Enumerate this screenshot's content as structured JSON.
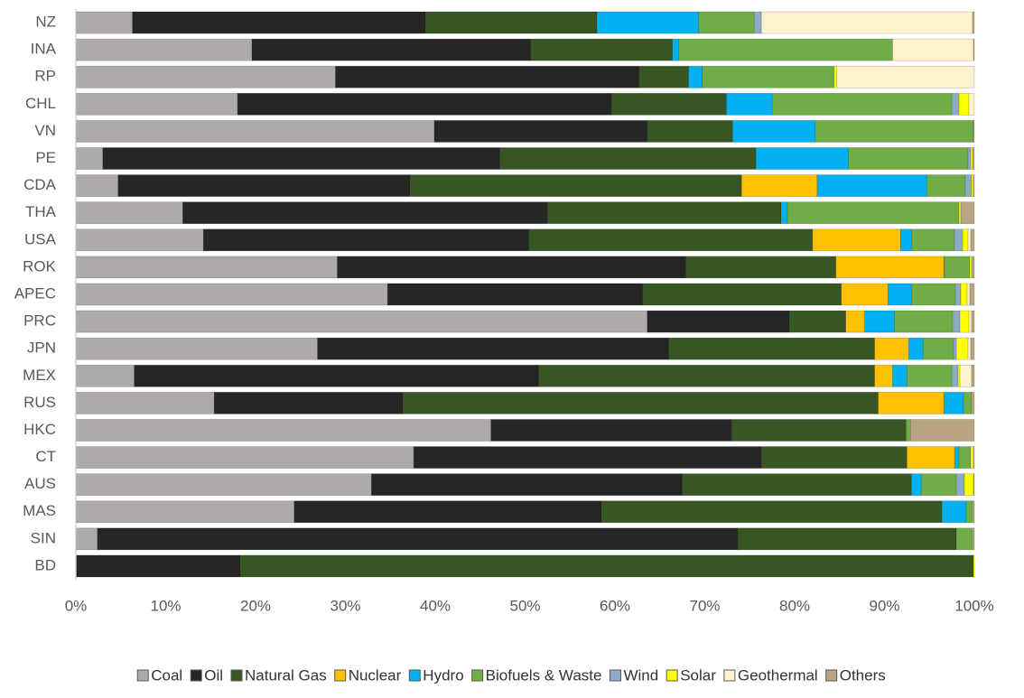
{
  "chart_data": {
    "type": "bar",
    "orientation": "horizontal",
    "stacked": true,
    "categories": [
      "NZ",
      "INA",
      "RP",
      "CHL",
      "VN",
      "PE",
      "CDA",
      "THA",
      "USA",
      "ROK",
      "APEC",
      "PRC",
      "JPN",
      "MEX",
      "RUS",
      "HKC",
      "CT",
      "AUS",
      "MAS",
      "SIN",
      "BD"
    ],
    "series": [
      {
        "name": "Coal",
        "color": "#aeaaaa",
        "values": [
          6.3,
          19.6,
          28.9,
          18.0,
          39.9,
          3.0,
          4.7,
          11.9,
          14.2,
          29.1,
          34.7,
          63.6,
          26.9,
          6.5,
          15.4,
          46.2,
          37.6,
          32.9,
          24.3,
          2.4,
          0.1
        ]
      },
      {
        "name": "Oil",
        "color": "#262626",
        "values": [
          32.6,
          31.0,
          33.8,
          41.6,
          23.7,
          44.2,
          32.5,
          40.6,
          36.2,
          38.8,
          28.4,
          15.8,
          39.1,
          45.0,
          21.0,
          26.8,
          38.7,
          34.6,
          34.2,
          71.3,
          18.2
        ]
      },
      {
        "name": "Natural Gas",
        "color": "#375623",
        "values": [
          19.1,
          15.8,
          5.5,
          12.8,
          9.5,
          28.5,
          36.9,
          26.0,
          31.6,
          16.7,
          22.1,
          6.3,
          22.9,
          37.4,
          52.9,
          19.4,
          16.2,
          25.5,
          37.9,
          24.3,
          81.6
        ]
      },
      {
        "name": "Nuclear",
        "color": "#ffc000",
        "values": [
          0,
          0,
          0,
          0,
          0,
          0,
          8.4,
          0,
          9.8,
          12.0,
          5.2,
          2.1,
          3.8,
          2.0,
          7.3,
          0,
          5.3,
          0,
          0,
          0,
          0
        ]
      },
      {
        "name": "Hydro",
        "color": "#00b0f0",
        "values": [
          11.3,
          0.7,
          1.5,
          5.1,
          9.2,
          10.3,
          12.2,
          0.7,
          1.2,
          0.1,
          2.6,
          3.3,
          1.6,
          1.6,
          2.2,
          0,
          0.5,
          1.1,
          2.7,
          0,
          0
        ]
      },
      {
        "name": "Biofuels & Waste",
        "color": "#70ad47",
        "values": [
          6.2,
          23.8,
          14.7,
          20.0,
          17.6,
          13.3,
          4.3,
          19.1,
          4.8,
          2.8,
          4.9,
          6.5,
          3.4,
          5.0,
          0.9,
          0.5,
          1.3,
          3.9,
          0.7,
          1.8,
          0
        ]
      },
      {
        "name": "Wind",
        "color": "#8eaac8",
        "values": [
          0.8,
          0,
          0,
          0.8,
          0,
          0.3,
          0.7,
          0,
          0.9,
          0,
          0.6,
          0.8,
          0.3,
          0.7,
          0,
          0,
          0,
          0.9,
          0,
          0,
          0
        ]
      },
      {
        "name": "Solar",
        "color": "#ffff00",
        "values": [
          0,
          0,
          0.3,
          1.1,
          0,
          0.2,
          0.2,
          0.2,
          0.6,
          0.2,
          0.7,
          1.0,
          1.3,
          0.2,
          0,
          0,
          0.3,
          1.0,
          0.1,
          0.1,
          0.1
        ]
      },
      {
        "name": "Geothermal",
        "color": "#fff2cc",
        "values": [
          23.5,
          9.0,
          15.3,
          0.6,
          0,
          0,
          0,
          0,
          0.3,
          0,
          0.3,
          0.3,
          0.3,
          1.3,
          0,
          0,
          0,
          0,
          0,
          0,
          0
        ]
      },
      {
        "name": "Others",
        "color": "#b9a582",
        "values": [
          0.2,
          0.1,
          0,
          0,
          0.1,
          0.2,
          0.1,
          1.5,
          0.4,
          0.3,
          0.5,
          0.3,
          0.4,
          0.3,
          0.3,
          7.1,
          0.1,
          0.1,
          0.1,
          0.1,
          0
        ]
      }
    ],
    "xlim": [
      0,
      100
    ],
    "xticks": [
      {
        "value": 0,
        "label": "0%"
      },
      {
        "value": 10,
        "label": "10%"
      },
      {
        "value": 20,
        "label": "20%"
      },
      {
        "value": 30,
        "label": "30%"
      },
      {
        "value": 40,
        "label": "40%"
      },
      {
        "value": 50,
        "label": "50%"
      },
      {
        "value": 60,
        "label": "60%"
      },
      {
        "value": 70,
        "label": "70%"
      },
      {
        "value": 80,
        "label": "80%"
      },
      {
        "value": 90,
        "label": "90%"
      },
      {
        "value": 100,
        "label": "100%"
      }
    ],
    "grid": false,
    "legend": "bottom"
  }
}
